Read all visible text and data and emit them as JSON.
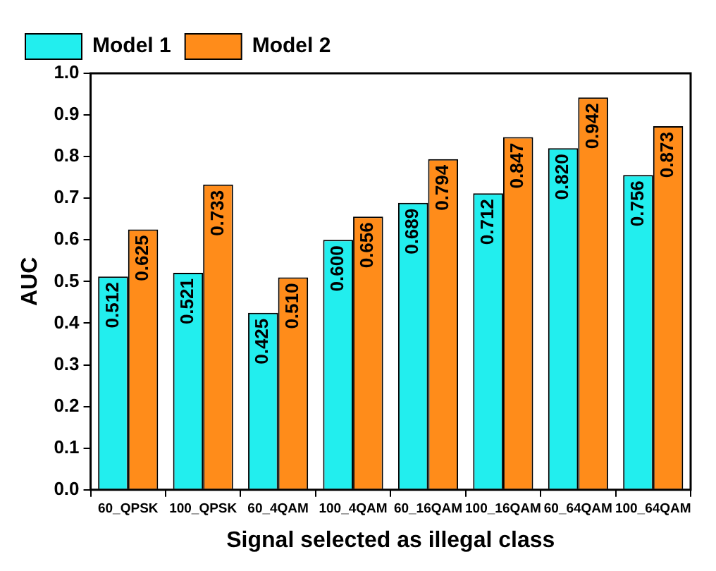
{
  "chart_data": {
    "type": "bar",
    "xlabel": "Signal selected as illegal class",
    "ylabel": "AUC",
    "categories": [
      "60_QPSK",
      "100_QPSK",
      "60_4QAM",
      "100_4QAM",
      "60_16QAM",
      "100_16QAM",
      "60_64QAM",
      "100_64QAM"
    ],
    "series": [
      {
        "name": "Model 1",
        "color": "#22eeee",
        "values": [
          0.512,
          0.521,
          0.425,
          0.6,
          0.689,
          0.712,
          0.82,
          0.756
        ],
        "value_labels": [
          "0.512",
          "0.521",
          "0.425",
          "0.600",
          "0.689",
          "0.712",
          "0.820",
          "0.756"
        ]
      },
      {
        "name": "Model 2",
        "color": "#ff8c1a",
        "values": [
          0.625,
          0.733,
          0.51,
          0.656,
          0.794,
          0.847,
          0.942,
          0.873
        ],
        "value_labels": [
          "0.625",
          "0.733",
          "0.510",
          "0.656",
          "0.794",
          "0.847",
          "0.942",
          "0.873"
        ]
      }
    ],
    "ylim": [
      0,
      1.0
    ],
    "yticks": [
      {
        "value": 0,
        "label": "0.0"
      },
      {
        "value": 0.1,
        "label": "0.1"
      },
      {
        "value": 0.2,
        "label": "0.2"
      },
      {
        "value": 0.3,
        "label": "0.3"
      },
      {
        "value": 0.4,
        "label": "0.4"
      },
      {
        "value": 0.5,
        "label": "0.5"
      },
      {
        "value": 0.6,
        "label": "0.6"
      },
      {
        "value": 0.7,
        "label": "0.7"
      },
      {
        "value": 0.8,
        "label": "0.8"
      },
      {
        "value": 0.9,
        "label": "0.9"
      },
      {
        "value": 1.0,
        "label": "1.0"
      }
    ],
    "grid": false,
    "legend": "top left"
  }
}
